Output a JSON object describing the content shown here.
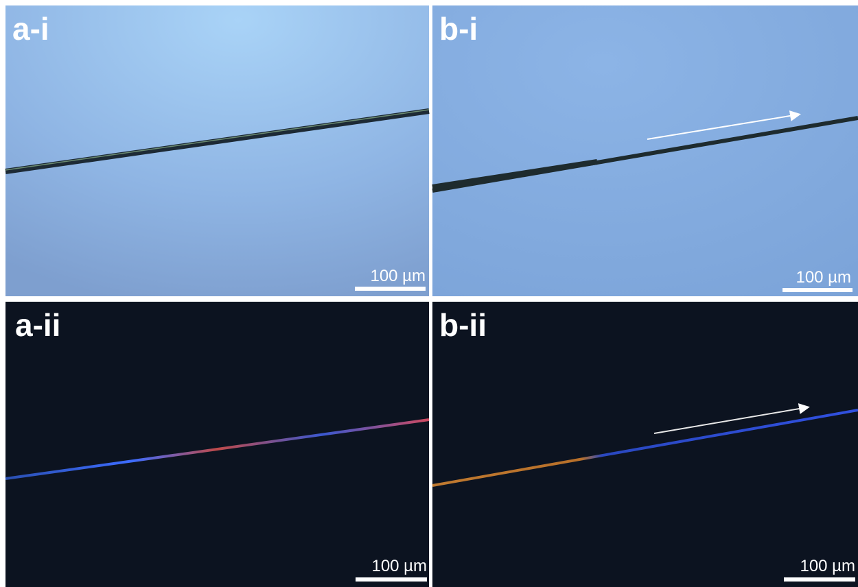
{
  "panels": [
    {
      "label": "a-i",
      "scale_bar": "100 µm"
    },
    {
      "label": "b-i",
      "scale_bar": "100 µm"
    },
    {
      "label": "a-ii",
      "scale_bar": "100 µm"
    },
    {
      "label": "b-ii",
      "scale_bar": "100 µm"
    }
  ]
}
